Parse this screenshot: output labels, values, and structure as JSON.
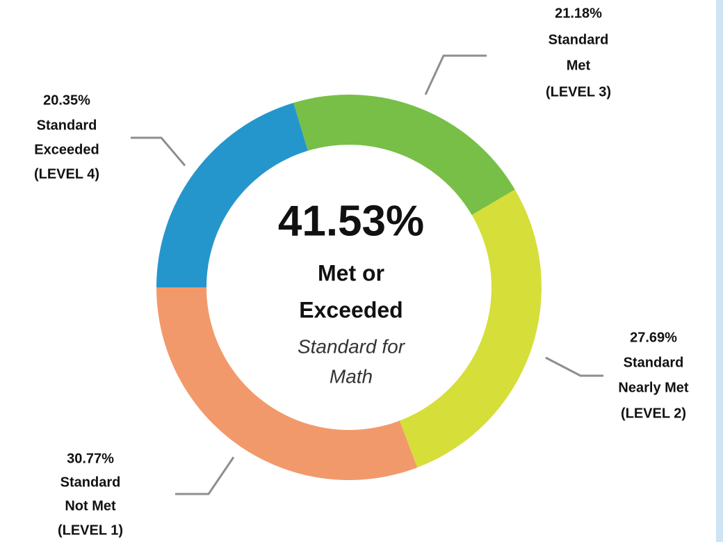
{
  "chart_data": {
    "type": "donut",
    "categories": [
      [
        "Standard",
        "Exceeded",
        "(LEVEL 4)"
      ],
      [
        "Standard",
        "Met",
        "(LEVEL 3)"
      ],
      [
        "Standard",
        "Nearly Met",
        "(LEVEL 2)"
      ],
      [
        "Standard",
        "Not Met",
        "(LEVEL 1)"
      ]
    ],
    "values": [
      20.35,
      21.18,
      27.69,
      30.77
    ],
    "value_labels": [
      "20.35%",
      "21.18%",
      "27.69%",
      "30.77%"
    ],
    "colors": [
      "#2596cc",
      "#78bf47",
      "#d6de3a",
      "#f2996b"
    ],
    "center_text": [
      "41.53%",
      "Met or",
      "Exceeded",
      "Standard for",
      "Math"
    ]
  }
}
